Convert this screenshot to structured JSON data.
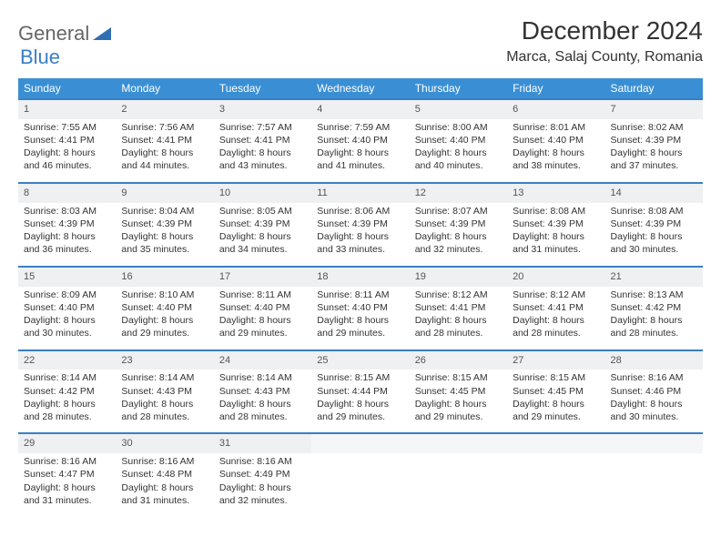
{
  "logo": {
    "word1": "General",
    "word2": "Blue"
  },
  "title": "December 2024",
  "location": "Marca, Salaj County, Romania",
  "colors": {
    "header_bg": "#3a8fd4",
    "header_text": "#ffffff",
    "row_border": "#3a7fc4",
    "daynum_bg": "#eef0f2",
    "text": "#333333"
  },
  "weekdays": [
    "Sunday",
    "Monday",
    "Tuesday",
    "Wednesday",
    "Thursday",
    "Friday",
    "Saturday"
  ],
  "weeks": [
    [
      {
        "day": "1",
        "sunrise": "Sunrise: 7:55 AM",
        "sunset": "Sunset: 4:41 PM",
        "daylight": "Daylight: 8 hours and 46 minutes."
      },
      {
        "day": "2",
        "sunrise": "Sunrise: 7:56 AM",
        "sunset": "Sunset: 4:41 PM",
        "daylight": "Daylight: 8 hours and 44 minutes."
      },
      {
        "day": "3",
        "sunrise": "Sunrise: 7:57 AM",
        "sunset": "Sunset: 4:41 PM",
        "daylight": "Daylight: 8 hours and 43 minutes."
      },
      {
        "day": "4",
        "sunrise": "Sunrise: 7:59 AM",
        "sunset": "Sunset: 4:40 PM",
        "daylight": "Daylight: 8 hours and 41 minutes."
      },
      {
        "day": "5",
        "sunrise": "Sunrise: 8:00 AM",
        "sunset": "Sunset: 4:40 PM",
        "daylight": "Daylight: 8 hours and 40 minutes."
      },
      {
        "day": "6",
        "sunrise": "Sunrise: 8:01 AM",
        "sunset": "Sunset: 4:40 PM",
        "daylight": "Daylight: 8 hours and 38 minutes."
      },
      {
        "day": "7",
        "sunrise": "Sunrise: 8:02 AM",
        "sunset": "Sunset: 4:39 PM",
        "daylight": "Daylight: 8 hours and 37 minutes."
      }
    ],
    [
      {
        "day": "8",
        "sunrise": "Sunrise: 8:03 AM",
        "sunset": "Sunset: 4:39 PM",
        "daylight": "Daylight: 8 hours and 36 minutes."
      },
      {
        "day": "9",
        "sunrise": "Sunrise: 8:04 AM",
        "sunset": "Sunset: 4:39 PM",
        "daylight": "Daylight: 8 hours and 35 minutes."
      },
      {
        "day": "10",
        "sunrise": "Sunrise: 8:05 AM",
        "sunset": "Sunset: 4:39 PM",
        "daylight": "Daylight: 8 hours and 34 minutes."
      },
      {
        "day": "11",
        "sunrise": "Sunrise: 8:06 AM",
        "sunset": "Sunset: 4:39 PM",
        "daylight": "Daylight: 8 hours and 33 minutes."
      },
      {
        "day": "12",
        "sunrise": "Sunrise: 8:07 AM",
        "sunset": "Sunset: 4:39 PM",
        "daylight": "Daylight: 8 hours and 32 minutes."
      },
      {
        "day": "13",
        "sunrise": "Sunrise: 8:08 AM",
        "sunset": "Sunset: 4:39 PM",
        "daylight": "Daylight: 8 hours and 31 minutes."
      },
      {
        "day": "14",
        "sunrise": "Sunrise: 8:08 AM",
        "sunset": "Sunset: 4:39 PM",
        "daylight": "Daylight: 8 hours and 30 minutes."
      }
    ],
    [
      {
        "day": "15",
        "sunrise": "Sunrise: 8:09 AM",
        "sunset": "Sunset: 4:40 PM",
        "daylight": "Daylight: 8 hours and 30 minutes."
      },
      {
        "day": "16",
        "sunrise": "Sunrise: 8:10 AM",
        "sunset": "Sunset: 4:40 PM",
        "daylight": "Daylight: 8 hours and 29 minutes."
      },
      {
        "day": "17",
        "sunrise": "Sunrise: 8:11 AM",
        "sunset": "Sunset: 4:40 PM",
        "daylight": "Daylight: 8 hours and 29 minutes."
      },
      {
        "day": "18",
        "sunrise": "Sunrise: 8:11 AM",
        "sunset": "Sunset: 4:40 PM",
        "daylight": "Daylight: 8 hours and 29 minutes."
      },
      {
        "day": "19",
        "sunrise": "Sunrise: 8:12 AM",
        "sunset": "Sunset: 4:41 PM",
        "daylight": "Daylight: 8 hours and 28 minutes."
      },
      {
        "day": "20",
        "sunrise": "Sunrise: 8:12 AM",
        "sunset": "Sunset: 4:41 PM",
        "daylight": "Daylight: 8 hours and 28 minutes."
      },
      {
        "day": "21",
        "sunrise": "Sunrise: 8:13 AM",
        "sunset": "Sunset: 4:42 PM",
        "daylight": "Daylight: 8 hours and 28 minutes."
      }
    ],
    [
      {
        "day": "22",
        "sunrise": "Sunrise: 8:14 AM",
        "sunset": "Sunset: 4:42 PM",
        "daylight": "Daylight: 8 hours and 28 minutes."
      },
      {
        "day": "23",
        "sunrise": "Sunrise: 8:14 AM",
        "sunset": "Sunset: 4:43 PM",
        "daylight": "Daylight: 8 hours and 28 minutes."
      },
      {
        "day": "24",
        "sunrise": "Sunrise: 8:14 AM",
        "sunset": "Sunset: 4:43 PM",
        "daylight": "Daylight: 8 hours and 28 minutes."
      },
      {
        "day": "25",
        "sunrise": "Sunrise: 8:15 AM",
        "sunset": "Sunset: 4:44 PM",
        "daylight": "Daylight: 8 hours and 29 minutes."
      },
      {
        "day": "26",
        "sunrise": "Sunrise: 8:15 AM",
        "sunset": "Sunset: 4:45 PM",
        "daylight": "Daylight: 8 hours and 29 minutes."
      },
      {
        "day": "27",
        "sunrise": "Sunrise: 8:15 AM",
        "sunset": "Sunset: 4:45 PM",
        "daylight": "Daylight: 8 hours and 29 minutes."
      },
      {
        "day": "28",
        "sunrise": "Sunrise: 8:16 AM",
        "sunset": "Sunset: 4:46 PM",
        "daylight": "Daylight: 8 hours and 30 minutes."
      }
    ],
    [
      {
        "day": "29",
        "sunrise": "Sunrise: 8:16 AM",
        "sunset": "Sunset: 4:47 PM",
        "daylight": "Daylight: 8 hours and 31 minutes."
      },
      {
        "day": "30",
        "sunrise": "Sunrise: 8:16 AM",
        "sunset": "Sunset: 4:48 PM",
        "daylight": "Daylight: 8 hours and 31 minutes."
      },
      {
        "day": "31",
        "sunrise": "Sunrise: 8:16 AM",
        "sunset": "Sunset: 4:49 PM",
        "daylight": "Daylight: 8 hours and 32 minutes."
      },
      null,
      null,
      null,
      null
    ]
  ]
}
